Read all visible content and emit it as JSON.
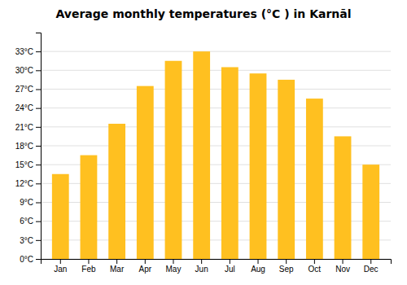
{
  "chart_data": {
    "type": "bar",
    "title": "Average monthly temperatures (°C ) in Karnāl",
    "categories": [
      "Jan",
      "Feb",
      "Mar",
      "Apr",
      "May",
      "Jun",
      "Jul",
      "Aug",
      "Sep",
      "Oct",
      "Nov",
      "Dec"
    ],
    "values": [
      13.5,
      16.5,
      21.5,
      27.5,
      31.5,
      33.0,
      30.5,
      29.5,
      28.5,
      25.5,
      19.5,
      15.0
    ],
    "color": "#FFC020",
    "ylim": [
      0,
      36
    ],
    "yticks": [
      {
        "value": 0,
        "label": "0°C"
      },
      {
        "value": 3,
        "label": "3°C"
      },
      {
        "value": 6,
        "label": "6°C"
      },
      {
        "value": 9,
        "label": "9°C"
      },
      {
        "value": 12,
        "label": "12°C"
      },
      {
        "value": 15,
        "label": "15°C"
      },
      {
        "value": 18,
        "label": "18°C"
      },
      {
        "value": 21,
        "label": "21°C"
      },
      {
        "value": 24,
        "label": "24°C"
      },
      {
        "value": 27,
        "label": "27°C"
      },
      {
        "value": 30,
        "label": "30°C"
      },
      {
        "value": 33,
        "label": "33°C"
      }
    ],
    "grid": true
  }
}
